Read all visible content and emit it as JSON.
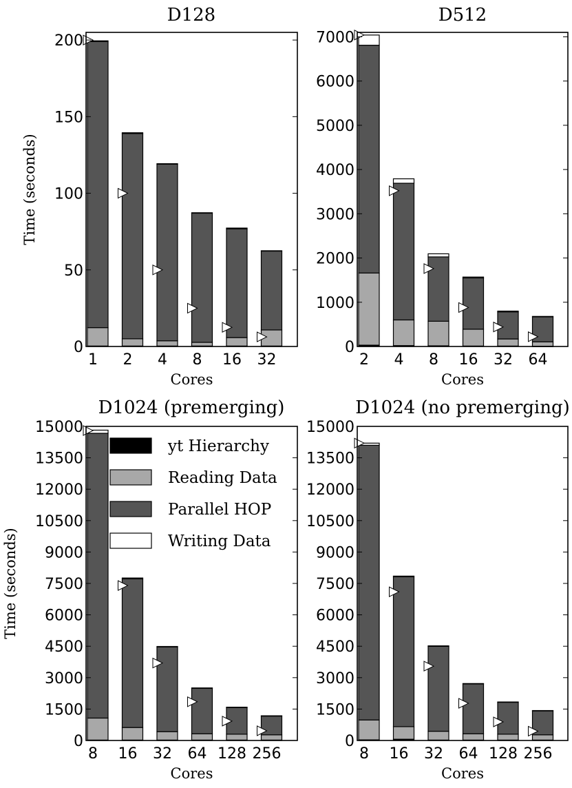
{
  "colors": {
    "yt_hierarchy": "#000000",
    "reading_data": "#a8a8a8",
    "parallel_hop": "#555555",
    "writing_data": "#ffffff",
    "ideal_marker": "#ffffff",
    "edge": "#000000"
  },
  "chart_data": [
    {
      "type": "bar",
      "stacked": true,
      "title": "D128",
      "xlabel": "Cores",
      "ylabel": "Time (seconds)",
      "categories": [
        "1",
        "2",
        "4",
        "8",
        "16",
        "32"
      ],
      "ylim": [
        0,
        205
      ],
      "yticks": [
        0,
        50,
        100,
        150,
        200
      ],
      "series": [
        {
          "name": "yt Hierarchy",
          "values": [
            0.3,
            0.3,
            0.3,
            0.3,
            0.3,
            0.3
          ]
        },
        {
          "name": "Reading Data",
          "values": [
            12,
            4.7,
            3.4,
            2.4,
            5.5,
            10.5
          ]
        },
        {
          "name": "Parallel HOP",
          "values": [
            186.7,
            134,
            115.3,
            84.3,
            71,
            51.5
          ]
        },
        {
          "name": "Writing Data",
          "values": [
            0.5,
            0.5,
            0.3,
            0.3,
            0.5,
            0.2
          ]
        }
      ],
      "ideal_markers": [
        200,
        100,
        50,
        25,
        12.5,
        6.25
      ],
      "grid": false
    },
    {
      "type": "bar",
      "stacked": true,
      "title": "D512",
      "xlabel": "Cores",
      "ylabel": "",
      "categories": [
        "2",
        "4",
        "8",
        "16",
        "32",
        "64"
      ],
      "ylim": [
        0,
        7100
      ],
      "yticks": [
        0,
        1000,
        2000,
        3000,
        4000,
        5000,
        6000,
        7000
      ],
      "series": [
        {
          "name": "yt Hierarchy",
          "values": [
            30,
            20,
            15,
            10,
            10,
            5
          ]
        },
        {
          "name": "Reading Data",
          "values": [
            1630,
            580,
            555,
            380,
            160,
            100
          ]
        },
        {
          "name": "Parallel HOP",
          "values": [
            5150,
            3090,
            1455,
            1160,
            610,
            565
          ]
        },
        {
          "name": "Writing Data",
          "values": [
            230,
            100,
            70,
            20,
            20,
            10
          ]
        }
      ],
      "ideal_markers": [
        7040,
        3520,
        1760,
        880,
        440,
        220
      ],
      "grid": false
    },
    {
      "type": "bar",
      "stacked": true,
      "title": "D1024 (premerging)",
      "xlabel": "Cores",
      "ylabel": "Time (seconds)",
      "categories": [
        "8",
        "16",
        "32",
        "64",
        "128",
        "256"
      ],
      "ylim": [
        0,
        15000
      ],
      "yticks": [
        0,
        1500,
        3000,
        4500,
        6000,
        7500,
        9000,
        10500,
        12000,
        13500,
        15000
      ],
      "series": [
        {
          "name": "yt Hierarchy",
          "values": [
            20,
            20,
            20,
            20,
            20,
            20
          ]
        },
        {
          "name": "Reading Data",
          "values": [
            1050,
            600,
            400,
            300,
            280,
            250
          ]
        },
        {
          "name": "Parallel HOP",
          "values": [
            13600,
            7100,
            4050,
            2180,
            1280,
            900
          ]
        },
        {
          "name": "Writing Data",
          "values": [
            150,
            40,
            20,
            10,
            10,
            10
          ]
        }
      ],
      "ideal_markers": [
        14800,
        7400,
        3700,
        1850,
        925,
        462
      ],
      "legend": {
        "entries": [
          "yt Hierarchy",
          "Reading Data",
          "Parallel HOP",
          "Writing Data"
        ],
        "placement": "upper-right"
      },
      "grid": false
    },
    {
      "type": "bar",
      "stacked": true,
      "title": "D1024 (no premerging)",
      "xlabel": "Cores",
      "ylabel": "",
      "categories": [
        "8",
        "16",
        "32",
        "64",
        "128",
        "256"
      ],
      "ylim": [
        0,
        15000
      ],
      "yticks": [
        0,
        1500,
        3000,
        4500,
        6000,
        7500,
        9000,
        10500,
        12000,
        13500,
        15000
      ],
      "series": [
        {
          "name": "yt Hierarchy",
          "values": [
            30,
            60,
            20,
            20,
            20,
            20
          ]
        },
        {
          "name": "Reading Data",
          "values": [
            950,
            600,
            420,
            300,
            280,
            250
          ]
        },
        {
          "name": "Parallel HOP",
          "values": [
            13120,
            7160,
            4060,
            2380,
            1530,
            1150
          ]
        },
        {
          "name": "Writing Data",
          "values": [
            100,
            30,
            20,
            20,
            10,
            10
          ]
        }
      ],
      "ideal_markers": [
        14200,
        7100,
        3550,
        1775,
        888,
        444
      ],
      "grid": false
    }
  ]
}
